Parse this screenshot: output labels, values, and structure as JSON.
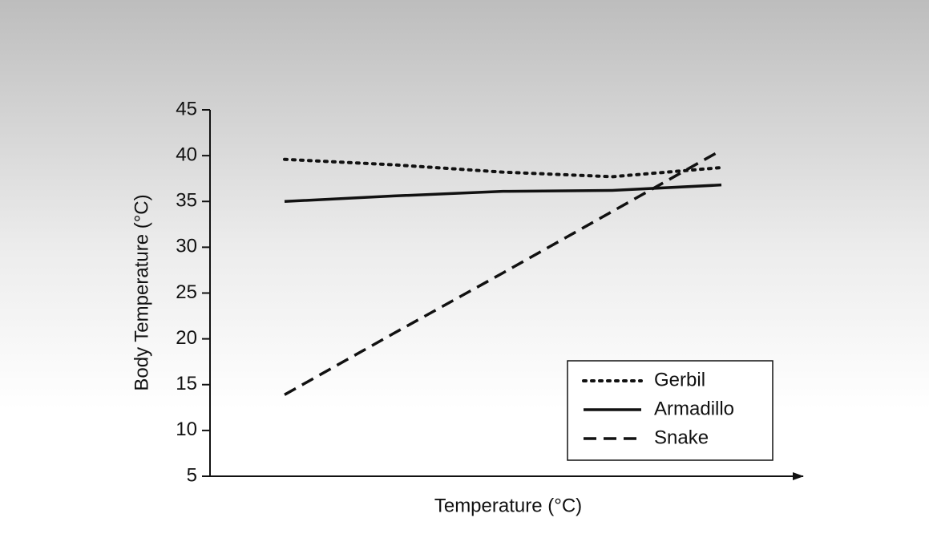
{
  "chart_data": {
    "type": "line",
    "y_label": "Body Temperature (°C)",
    "x_label": "Temperature (°C)",
    "categories": [
      null,
      null,
      null,
      null,
      null
    ],
    "series": [
      {
        "name": "Gerbil",
        "color": "#111111",
        "dash": "dotted",
        "values": [
          39.6,
          39.0,
          38.2,
          37.7,
          38.7
        ]
      },
      {
        "name": "Armadillo",
        "color": "#111111",
        "dash": "solid",
        "values": [
          35.0,
          35.6,
          36.1,
          36.2,
          36.8
        ]
      },
      {
        "name": "Snake",
        "color": "#111111",
        "dash": "dashed",
        "values": [
          13.9,
          20.6,
          27.2,
          33.9,
          40.6
        ]
      }
    ],
    "ylim": [
      5,
      45
    ],
    "yticks": [
      5,
      10,
      15,
      20,
      25,
      30,
      35,
      40,
      45
    ],
    "legend": "lower-right"
  }
}
